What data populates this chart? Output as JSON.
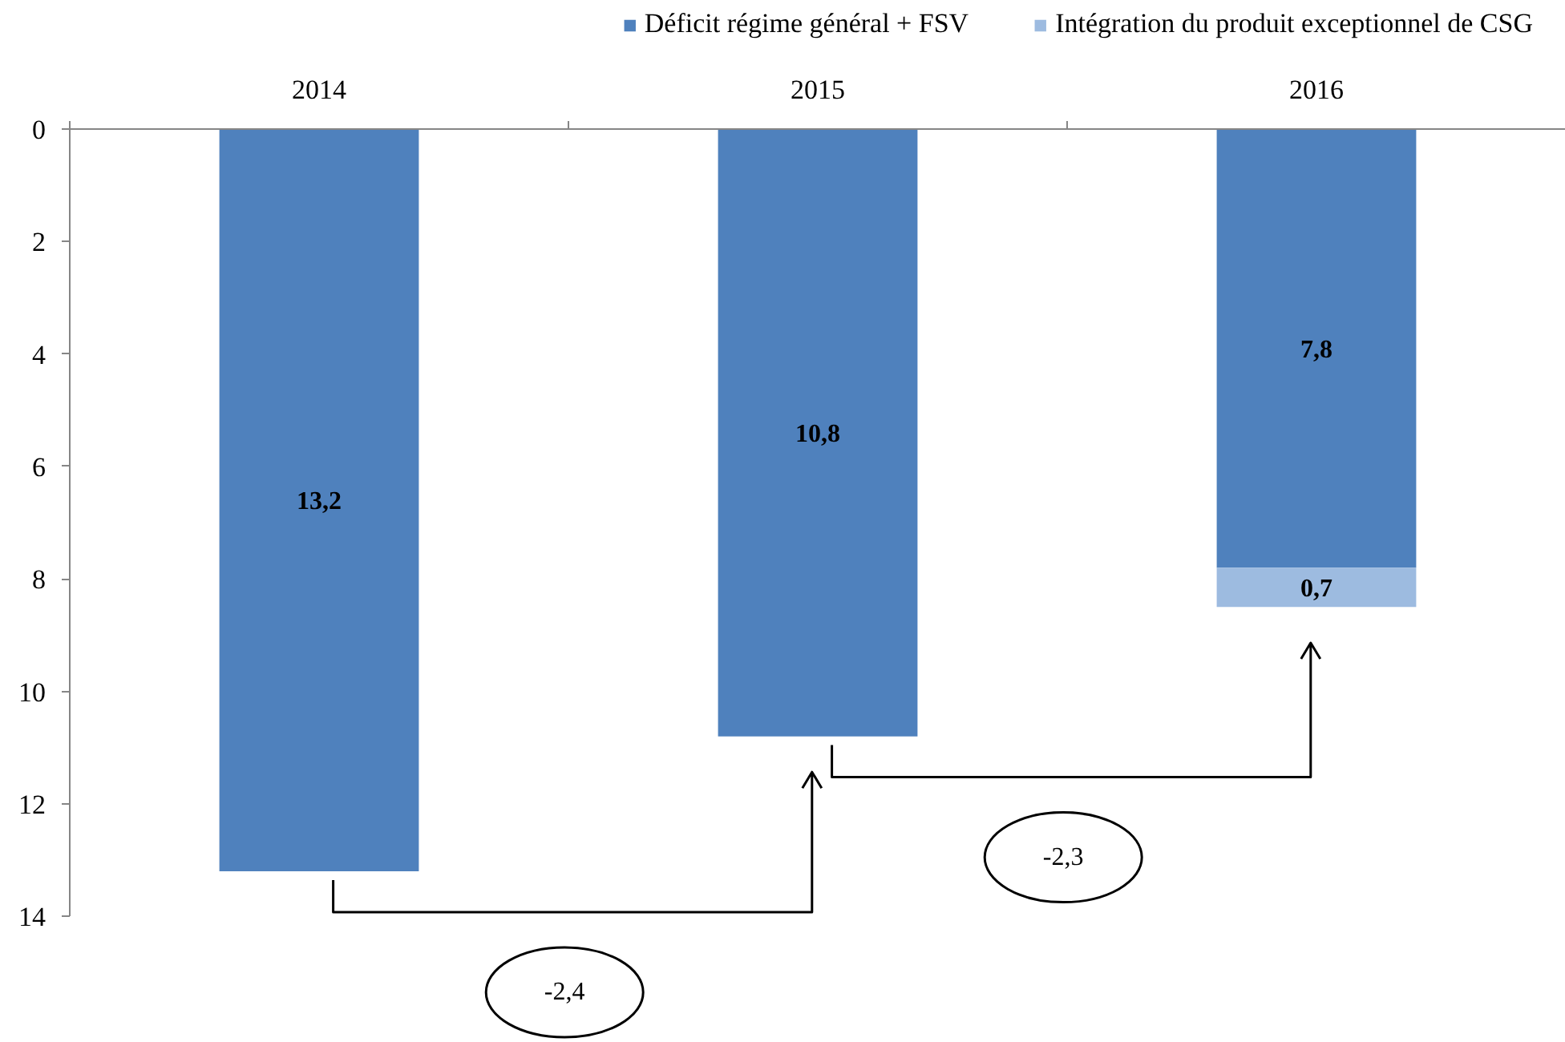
{
  "chart_data": {
    "type": "bar",
    "stacked": true,
    "categories": [
      "2014",
      "2015",
      "2016"
    ],
    "series": [
      {
        "name": "Déficit régime général + FSV",
        "color": "#4f81bd",
        "values": [
          13.2,
          10.8,
          7.8
        ],
        "value_labels": [
          "13,2",
          "10,8",
          "7,8"
        ]
      },
      {
        "name": "Intégration du produit exceptionnel de CSG",
        "color": "#9dbbe0",
        "values": [
          null,
          null,
          0.7
        ],
        "value_labels": [
          null,
          null,
          "0,7"
        ]
      }
    ],
    "ylim": [
      14,
      0
    ],
    "yticks": [
      0,
      2,
      4,
      6,
      8,
      10,
      12,
      14
    ],
    "grid": false,
    "legend": "top",
    "annotations": [
      "-2,4",
      "-2,3"
    ]
  }
}
